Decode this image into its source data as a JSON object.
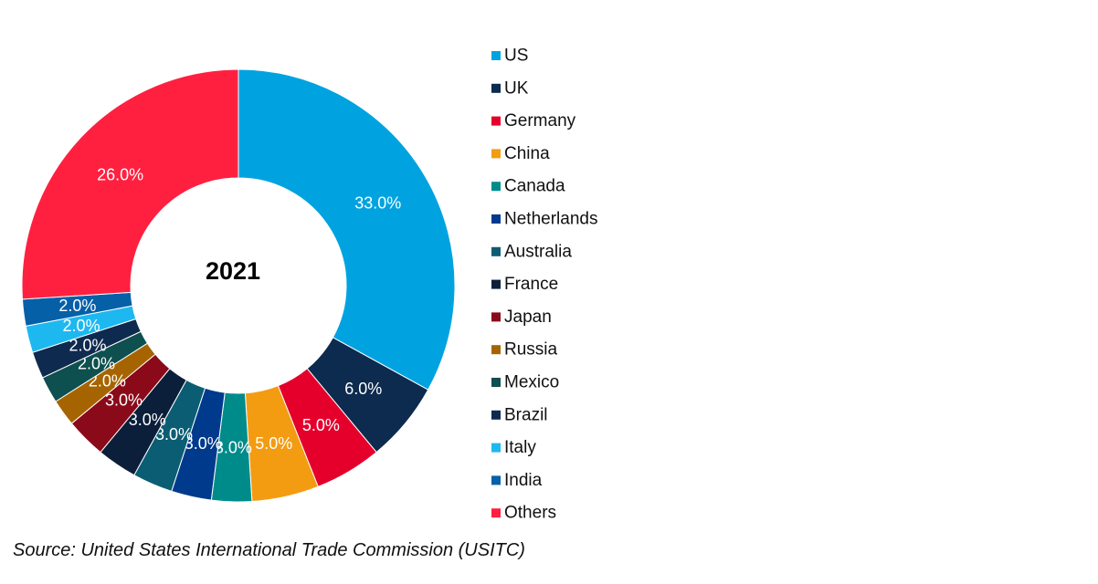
{
  "chart_data": {
    "type": "pie",
    "variant": "donut",
    "center_label": "2021",
    "categories": [
      "US",
      "UK",
      "Germany",
      "China",
      "Canada",
      "Netherlands",
      "Australia",
      "France",
      "Japan",
      "Russia",
      "Mexico",
      "Brazil",
      "Italy",
      "India",
      "Others"
    ],
    "values": [
      33.0,
      6.0,
      5.0,
      5.0,
      3.0,
      3.0,
      3.0,
      3.0,
      3.0,
      2.0,
      2.0,
      2.0,
      2.0,
      2.0,
      26.0
    ],
    "data_labels": [
      "33.0%",
      "6.0%",
      "5.0%",
      "5.0%",
      "3.0%",
      "3.0%",
      "3.0%",
      "3.0%",
      "3.0%",
      "2.0%",
      "2.0%",
      "2.0%",
      "2.0%",
      "2.0%",
      "26.0%"
    ],
    "colors": [
      "#00A3E0",
      "#0D2A4F",
      "#E4002B",
      "#F39C12",
      "#008B8B",
      "#003A8C",
      "#0B5D73",
      "#0B1F3A",
      "#8B0A1A",
      "#A66400",
      "#0E4F4F",
      "#0F2A4F",
      "#1EB8F0",
      "#0560A8",
      "#FF2040"
    ],
    "legend_position": "right"
  },
  "source": "Source: United States International Trade Commission (USITC)"
}
